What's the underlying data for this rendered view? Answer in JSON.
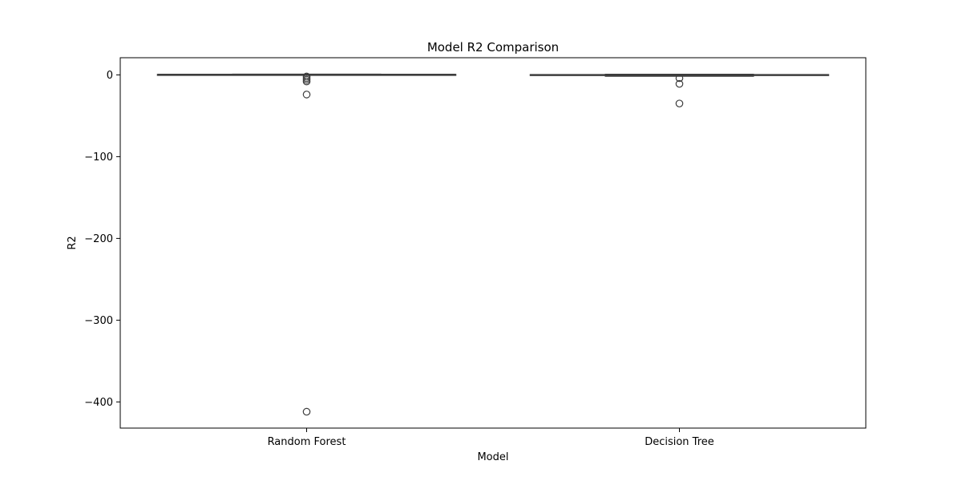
{
  "chart_data": {
    "type": "box",
    "title": "Model R2 Comparison",
    "xlabel": "Model",
    "ylabel": "R2",
    "ylim": [
      -432,
      21
    ],
    "yticks": [
      0,
      -100,
      -200,
      -300,
      -400
    ],
    "ytick_labels": [
      "0",
      "−100",
      "−200",
      "−300",
      "−400"
    ],
    "categories": [
      "Random Forest",
      "Decision Tree"
    ],
    "grid": false,
    "box_color": "#3d3d3d",
    "series": [
      {
        "category": "Random Forest",
        "whisker_low": -0.3,
        "q1": 0.2,
        "median": 0.35,
        "q3": 0.5,
        "whisker_high": 0.8,
        "outliers": [
          -2,
          -4,
          -6,
          -8,
          -24,
          -412
        ]
      },
      {
        "category": "Decision Tree",
        "whisker_low": -1.5,
        "q1": -0.5,
        "median": -0.1,
        "q3": 0.3,
        "whisker_high": 0.6,
        "outliers": [
          -4,
          -11,
          -35
        ]
      }
    ]
  }
}
